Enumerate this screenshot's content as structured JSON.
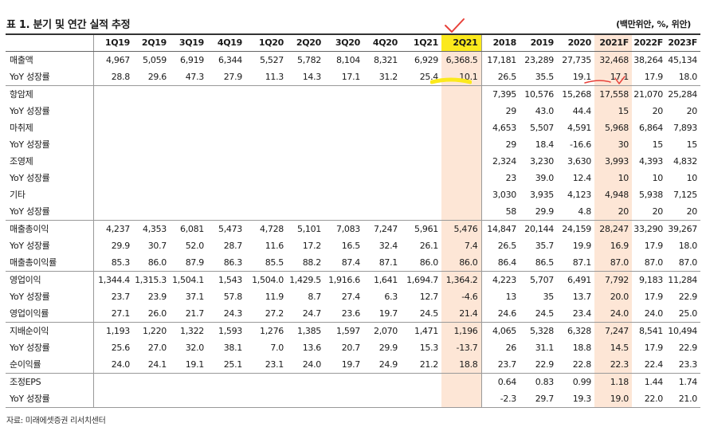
{
  "title": "표 1. 분기 및 연간 실적 추정",
  "unit": "(백만위안, %, 위안)",
  "source": "자료: 미래에셋증권 리서치센터",
  "colors": {
    "highlight": "#fde6d6",
    "header_highlight": "#fbe91c",
    "marker": "#e8413a"
  },
  "columns": [
    "1Q19",
    "2Q19",
    "3Q19",
    "4Q19",
    "1Q20",
    "2Q20",
    "3Q20",
    "4Q20",
    "1Q21",
    "2Q21",
    "2018",
    "2019",
    "2020",
    "2021F",
    "2022F",
    "2023F"
  ],
  "rows": [
    {
      "label": "매출액",
      "group_start": true,
      "values": [
        "4,967",
        "5,059",
        "6,919",
        "6,344",
        "5,527",
        "5,782",
        "8,104",
        "8,321",
        "6,929",
        "6,368.5",
        "17,181",
        "23,289",
        "27,735",
        "32,468",
        "38,264",
        "45,134"
      ]
    },
    {
      "label": "YoY 성장률",
      "values": [
        "28.8",
        "29.6",
        "47.3",
        "27.9",
        "11.3",
        "14.3",
        "17.1",
        "31.2",
        "25.4",
        "10.1",
        "26.5",
        "35.5",
        "19.1",
        "17.1",
        "17.9",
        "18.0"
      ]
    },
    {
      "label": "항암제",
      "group_start": true,
      "values": [
        "",
        "",
        "",
        "",
        "",
        "",
        "",
        "",
        "",
        "",
        "7,395",
        "10,576",
        "15,268",
        "17,558",
        "21,070",
        "25,284"
      ]
    },
    {
      "label": "YoY 성장률",
      "values": [
        "",
        "",
        "",
        "",
        "",
        "",
        "",
        "",
        "",
        "",
        "29",
        "43.0",
        "44.4",
        "15",
        "20",
        "20"
      ]
    },
    {
      "label": "마취제",
      "values": [
        "",
        "",
        "",
        "",
        "",
        "",
        "",
        "",
        "",
        "",
        "4,653",
        "5,507",
        "4,591",
        "5,968",
        "6,864",
        "7,893"
      ]
    },
    {
      "label": "YoY 성장률",
      "values": [
        "",
        "",
        "",
        "",
        "",
        "",
        "",
        "",
        "",
        "",
        "29",
        "18.4",
        "-16.6",
        "30",
        "15",
        "15"
      ]
    },
    {
      "label": "조영제",
      "values": [
        "",
        "",
        "",
        "",
        "",
        "",
        "",
        "",
        "",
        "",
        "2,324",
        "3,230",
        "3,630",
        "3,993",
        "4,393",
        "4,832"
      ]
    },
    {
      "label": "YoY 성장률",
      "values": [
        "",
        "",
        "",
        "",
        "",
        "",
        "",
        "",
        "",
        "",
        "23",
        "39.0",
        "12.4",
        "10",
        "10",
        "10"
      ]
    },
    {
      "label": "기타",
      "values": [
        "",
        "",
        "",
        "",
        "",
        "",
        "",
        "",
        "",
        "",
        "3,030",
        "3,935",
        "4,123",
        "4,948",
        "5,938",
        "7,125"
      ]
    },
    {
      "label": "YoY 성장률",
      "values": [
        "",
        "",
        "",
        "",
        "",
        "",
        "",
        "",
        "",
        "",
        "58",
        "29.9",
        "4.8",
        "20",
        "20",
        "20"
      ]
    },
    {
      "label": "매출총이익",
      "group_start": true,
      "values": [
        "4,237",
        "4,353",
        "6,081",
        "5,473",
        "4,728",
        "5,101",
        "7,083",
        "7,247",
        "5,961",
        "5,476",
        "14,847",
        "20,144",
        "24,159",
        "28,247",
        "33,290",
        "39,267"
      ]
    },
    {
      "label": "YoY 성장률",
      "values": [
        "29.9",
        "30.7",
        "52.0",
        "28.7",
        "11.6",
        "17.2",
        "16.5",
        "32.4",
        "26.1",
        "7.4",
        "26.5",
        "35.7",
        "19.9",
        "16.9",
        "17.9",
        "18.0"
      ]
    },
    {
      "label": "매출총이익률",
      "values": [
        "85.3",
        "86.0",
        "87.9",
        "86.3",
        "85.5",
        "88.2",
        "87.4",
        "87.1",
        "86.0",
        "86.0",
        "86.4",
        "86.5",
        "87.1",
        "87.0",
        "87.0",
        "87.0"
      ]
    },
    {
      "label": "영업이익",
      "group_start": true,
      "values": [
        "1,344.4",
        "1,315.3",
        "1,504.1",
        "1,543",
        "1,504.0",
        "1,429.5",
        "1,916.6",
        "1,641",
        "1,694.7",
        "1,364.2",
        "4,223",
        "5,707",
        "6,491",
        "7,792",
        "9,183",
        "11,284"
      ]
    },
    {
      "label": "YoY 성장률",
      "values": [
        "23.7",
        "23.9",
        "37.1",
        "57.8",
        "11.9",
        "8.7",
        "27.4",
        "6.3",
        "12.7",
        "-4.6",
        "13",
        "35",
        "13.7",
        "20.0",
        "17.9",
        "22.9"
      ]
    },
    {
      "label": "영업이익률",
      "values": [
        "27.1",
        "26.0",
        "21.7",
        "24.3",
        "27.2",
        "24.7",
        "23.6",
        "19.7",
        "24.5",
        "21.4",
        "24.6",
        "24.5",
        "23.4",
        "24.0",
        "24.0",
        "25.0"
      ]
    },
    {
      "label": "지배순이익",
      "group_start": true,
      "values": [
        "1,193",
        "1,220",
        "1,322",
        "1,593",
        "1,276",
        "1,385",
        "1,597",
        "2,070",
        "1,471",
        "1,196",
        "4,065",
        "5,328",
        "6,328",
        "7,247",
        "8,541",
        "10,494"
      ]
    },
    {
      "label": "YoY 성장률",
      "values": [
        "25.6",
        "27.0",
        "32.0",
        "38.1",
        "7.0",
        "13.6",
        "20.7",
        "29.9",
        "15.3",
        "-13.7",
        "26",
        "31.1",
        "18.8",
        "14.5",
        "17.9",
        "22.9"
      ]
    },
    {
      "label": "순이익률",
      "values": [
        "24.0",
        "24.1",
        "19.1",
        "25.1",
        "23.1",
        "24.0",
        "19.7",
        "24.9",
        "21.2",
        "18.8",
        "23.7",
        "22.9",
        "22.8",
        "22.3",
        "22.4",
        "23.3"
      ]
    },
    {
      "label": "조정EPS",
      "group_start": true,
      "values": [
        "",
        "",
        "",
        "",
        "",
        "",
        "",
        "",
        "",
        "",
        "0.64",
        "0.83",
        "0.99",
        "1.18",
        "1.44",
        "1.74"
      ]
    },
    {
      "label": "YoY 성장률",
      "values": [
        "",
        "",
        "",
        "",
        "",
        "",
        "",
        "",
        "",
        "",
        "-2.3",
        "29.7",
        "19.3",
        "19.0",
        "22.0",
        "21.0"
      ]
    }
  ]
}
